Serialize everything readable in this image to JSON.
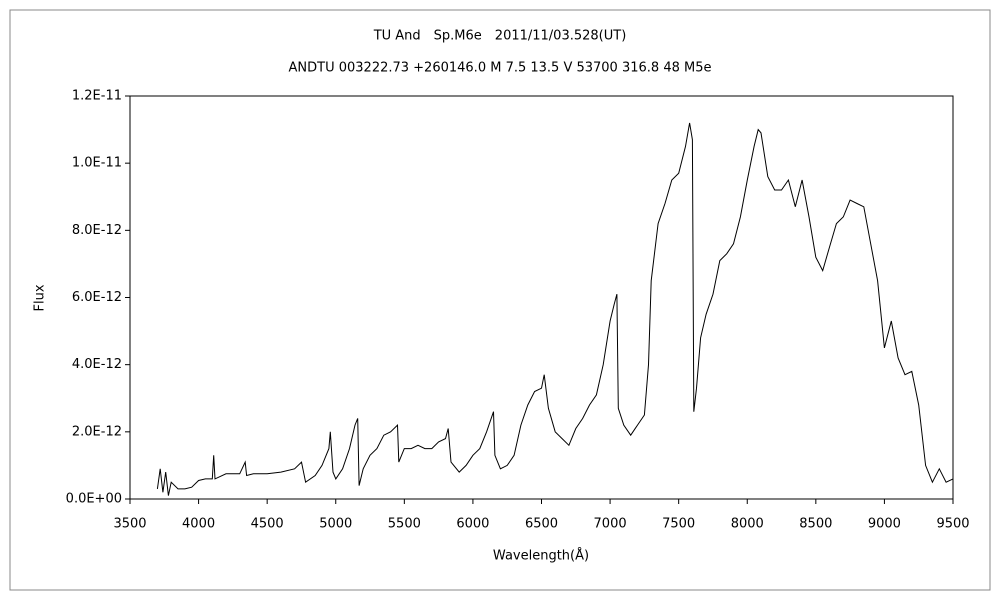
{
  "chart_data": {
    "type": "line",
    "title": "TU And　Sp.M6e　2011/11/03.528(UT)",
    "subtitle": "ANDTU 003222.73 +260146.0 M 7.5 13.5 V 53700 316.8 48 M5e",
    "x_label": "Wavelength(Å)",
    "y_label": "Flux",
    "xlim": [
      3500,
      9500
    ],
    "xticks": [
      3500,
      4000,
      4500,
      5000,
      5500,
      6000,
      6500,
      7000,
      7500,
      8000,
      8500,
      9000,
      9500
    ],
    "ylim": [
      0,
      1.2e-11
    ],
    "yticks": [
      {
        "value": 0,
        "label": "0.0E+00"
      },
      {
        "value": 2e-12,
        "label": "2.0E-12"
      },
      {
        "value": 4e-12,
        "label": "4.0E-12"
      },
      {
        "value": 6e-12,
        "label": "6.0E-12"
      },
      {
        "value": 8e-12,
        "label": "8.0E-12"
      },
      {
        "value": 1e-11,
        "label": "1.0E-11"
      },
      {
        "value": 1.2e-11,
        "label": "1.2E-11"
      }
    ],
    "grid": false,
    "series": [
      {
        "color": "#000000",
        "x": [
          3700,
          3720,
          3740,
          3760,
          3780,
          3800,
          3850,
          3900,
          3950,
          4000,
          4050,
          4100,
          4110,
          4120,
          4200,
          4300,
          4340,
          4350,
          4400,
          4500,
          4600,
          4700,
          4750,
          4780,
          4850,
          4900,
          4950,
          4960,
          4980,
          5000,
          5050,
          5100,
          5140,
          5160,
          5170,
          5200,
          5250,
          5300,
          5350,
          5400,
          5450,
          5460,
          5500,
          5550,
          5600,
          5650,
          5700,
          5750,
          5800,
          5820,
          5840,
          5900,
          5950,
          6000,
          6050,
          6100,
          6150,
          6160,
          6200,
          6250,
          6300,
          6350,
          6400,
          6450,
          6500,
          6520,
          6550,
          6600,
          6650,
          6700,
          6750,
          6800,
          6850,
          6900,
          6950,
          7000,
          7030,
          7050,
          7060,
          7100,
          7150,
          7200,
          7250,
          7280,
          7300,
          7350,
          7400,
          7450,
          7500,
          7550,
          7580,
          7600,
          7610,
          7630,
          7660,
          7700,
          7750,
          7800,
          7850,
          7900,
          7950,
          8000,
          8050,
          8080,
          8100,
          8150,
          8200,
          8250,
          8300,
          8350,
          8400,
          8450,
          8500,
          8550,
          8600,
          8650,
          8700,
          8750,
          8800,
          8850,
          8900,
          8950,
          9000,
          9050,
          9100,
          9150,
          9200,
          9250,
          9300,
          9350,
          9400,
          9450,
          9500
        ],
        "values": [
          3e-13,
          9e-13,
          2e-13,
          8e-13,
          1e-13,
          5e-13,
          3e-13,
          3e-13,
          3.5e-13,
          5.5e-13,
          6e-13,
          6e-13,
          1.3e-12,
          6e-13,
          7.5e-13,
          7.5e-13,
          1.1e-12,
          7e-13,
          7.5e-13,
          7.5e-13,
          8e-13,
          9e-13,
          1.1e-12,
          5e-13,
          7e-13,
          1e-12,
          1.5e-12,
          2e-12,
          8e-13,
          6e-13,
          9e-13,
          1.5e-12,
          2.2e-12,
          2.4e-12,
          4e-13,
          9e-13,
          1.3e-12,
          1.5e-12,
          1.9e-12,
          2e-12,
          2.2e-12,
          1.1e-12,
          1.5e-12,
          1.5e-12,
          1.6e-12,
          1.5e-12,
          1.5e-12,
          1.7e-12,
          1.8e-12,
          2.1e-12,
          1.1e-12,
          8e-13,
          1e-12,
          1.3e-12,
          1.5e-12,
          2e-12,
          2.6e-12,
          1.3e-12,
          9e-13,
          1e-12,
          1.3e-12,
          2.2e-12,
          2.8e-12,
          3.2e-12,
          3.3e-12,
          3.7e-12,
          2.7e-12,
          2e-12,
          1.8e-12,
          1.6e-12,
          2.1e-12,
          2.4e-12,
          2.8e-12,
          3.1e-12,
          4e-12,
          5.3e-12,
          5.8e-12,
          6.1e-12,
          2.7e-12,
          2.2e-12,
          1.9e-12,
          2.2e-12,
          2.5e-12,
          4e-12,
          6.5e-12,
          8.2e-12,
          8.8e-12,
          9.5e-12,
          9.7e-12,
          1.05e-11,
          1.12e-11,
          1.07e-11,
          2.6e-12,
          3.3e-12,
          4.8e-12,
          5.5e-12,
          6.1e-12,
          7.1e-12,
          7.3e-12,
          7.6e-12,
          8.4e-12,
          9.5e-12,
          1.05e-11,
          1.1e-11,
          1.09e-11,
          9.6e-12,
          9.2e-12,
          9.2e-12,
          9.5e-12,
          8.7e-12,
          9.5e-12,
          8.4e-12,
          7.2e-12,
          6.8e-12,
          7.5e-12,
          8.2e-12,
          8.4e-12,
          8.9e-12,
          8.8e-12,
          8.7e-12,
          7.6e-12,
          6.5e-12,
          4.5e-12,
          5.3e-12,
          4.2e-12,
          3.7e-12,
          3.8e-12,
          2.8e-12,
          1e-12,
          5e-13,
          9e-13,
          5e-13,
          6e-13
        ]
      }
    ]
  }
}
